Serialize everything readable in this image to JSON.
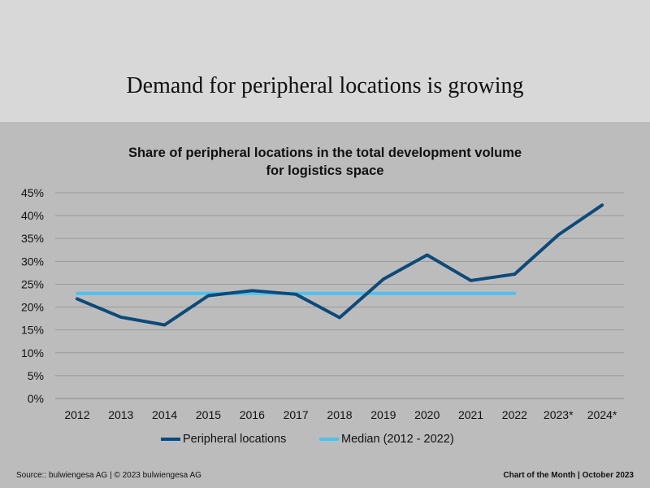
{
  "header": {
    "title": "Demand for peripheral locations is growing"
  },
  "chart_data": {
    "type": "line",
    "title_line1": "Share of peripheral locations in the total development volume",
    "title_line2": "for logistics space",
    "categories": [
      "2012",
      "2013",
      "2014",
      "2015",
      "2016",
      "2017",
      "2018",
      "2019",
      "2020",
      "2021",
      "2022",
      "2023*",
      "2024*"
    ],
    "yticks": [
      "0%",
      "5%",
      "10%",
      "15%",
      "20%",
      "25%",
      "30%",
      "35%",
      "40%",
      "45%"
    ],
    "ylim": [
      0,
      45
    ],
    "grid": true,
    "series": [
      {
        "name": "Peripheral locations",
        "color": "#0d4a78",
        "values": [
          21.8,
          17.8,
          16.1,
          22.5,
          23.6,
          22.8,
          17.7,
          26.1,
          31.4,
          25.8,
          27.2,
          35.8,
          42.3
        ]
      },
      {
        "name": "Median (2012 - 2022)",
        "color": "#5bbde5",
        "values": [
          23.0,
          23.0,
          23.0,
          23.0,
          23.0,
          23.0,
          23.0,
          23.0,
          23.0,
          23.0,
          23.0,
          null,
          null
        ]
      }
    ]
  },
  "footer": {
    "source": "Source:: bulwiengesa AG  | © 2023 bulwiengesa AG",
    "right": "Chart of the Month  | October 2023"
  }
}
